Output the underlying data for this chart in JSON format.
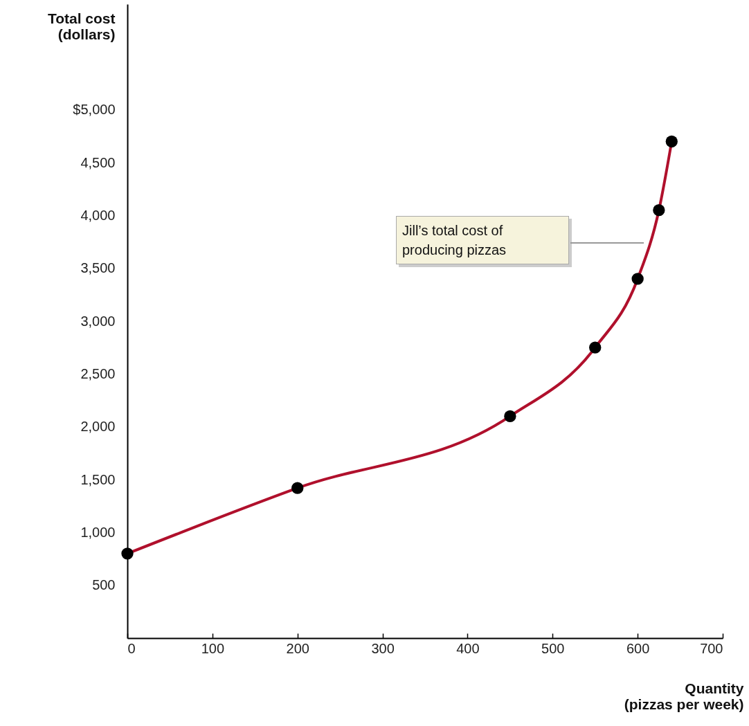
{
  "chart_data": {
    "type": "line",
    "xlabel": "Quantity (pizzas per week)",
    "ylabel": "Total cost (dollars)",
    "x": [
      0,
      200,
      450,
      550,
      600,
      625,
      640
    ],
    "series": [
      {
        "color": "#b0102c",
        "values": [
          800,
          1420,
          2100,
          2750,
          3400,
          4050,
          4700
        ]
      }
    ],
    "xlim": [
      0,
      700
    ],
    "xticks": [
      0,
      100,
      200,
      300,
      400,
      500,
      600,
      700
    ],
    "ylim": [
      0,
      6000
    ],
    "yticks": [
      {
        "value": 500,
        "label": "500"
      },
      {
        "value": 1000,
        "label": "1,000"
      },
      {
        "value": 1500,
        "label": "1,500"
      },
      {
        "value": 2000,
        "label": "2,000"
      },
      {
        "value": 2500,
        "label": "2,500"
      },
      {
        "value": 3000,
        "label": "3,000"
      },
      {
        "value": 3500,
        "label": "3,500"
      },
      {
        "value": 4000,
        "label": "4,000"
      },
      {
        "value": 4500,
        "label": "4,500"
      },
      {
        "value": 5000,
        "label": "$5,000"
      }
    ],
    "annotations": [
      "Jill’s total cost of producing pizzas"
    ],
    "marker": "circle",
    "grid": false
  }
}
